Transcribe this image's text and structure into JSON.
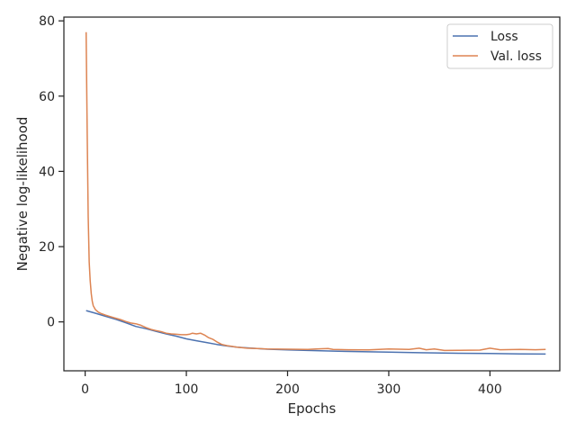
{
  "chart_data": {
    "type": "line",
    "title": "",
    "xlabel": "Epochs",
    "ylabel": "Negative log-likelihood",
    "xlim": [
      -21,
      469
    ],
    "ylim": [
      -13,
      81
    ],
    "xticks": [
      0,
      100,
      200,
      300,
      400
    ],
    "yticks": [
      0,
      20,
      40,
      60,
      80
    ],
    "grid": false,
    "legend_position": "top-right",
    "series": [
      {
        "name": "Loss",
        "color": "#4c72b0",
        "points": [
          [
            1,
            3.0
          ],
          [
            10,
            2.3
          ],
          [
            20,
            1.5
          ],
          [
            30,
            0.7
          ],
          [
            40,
            -0.2
          ],
          [
            50,
            -1.2
          ],
          [
            60,
            -1.8
          ],
          [
            70,
            -2.5
          ],
          [
            80,
            -3.2
          ],
          [
            90,
            -3.8
          ],
          [
            100,
            -4.5
          ],
          [
            110,
            -5.0
          ],
          [
            120,
            -5.5
          ],
          [
            130,
            -6.0
          ],
          [
            140,
            -6.4
          ],
          [
            150,
            -6.7
          ],
          [
            160,
            -6.9
          ],
          [
            170,
            -7.1
          ],
          [
            180,
            -7.25
          ],
          [
            200,
            -7.45
          ],
          [
            220,
            -7.6
          ],
          [
            250,
            -7.8
          ],
          [
            280,
            -7.95
          ],
          [
            300,
            -8.05
          ],
          [
            330,
            -8.2
          ],
          [
            360,
            -8.3
          ],
          [
            400,
            -8.4
          ],
          [
            430,
            -8.5
          ],
          [
            455,
            -8.55
          ]
        ]
      },
      {
        "name": "Val. loss",
        "color": "#dd8452",
        "points": [
          [
            1,
            77.0
          ],
          [
            2,
            50.0
          ],
          [
            3,
            28.0
          ],
          [
            4,
            16.0
          ],
          [
            5,
            11.0
          ],
          [
            6,
            7.5
          ],
          [
            7,
            5.5
          ],
          [
            8,
            4.3
          ],
          [
            10,
            3.3
          ],
          [
            13,
            2.6
          ],
          [
            16,
            2.2
          ],
          [
            20,
            1.8
          ],
          [
            25,
            1.4
          ],
          [
            30,
            1.0
          ],
          [
            35,
            0.6
          ],
          [
            40,
            0.1
          ],
          [
            45,
            -0.3
          ],
          [
            50,
            -0.5
          ],
          [
            55,
            -0.9
          ],
          [
            60,
            -1.5
          ],
          [
            65,
            -2.0
          ],
          [
            70,
            -2.3
          ],
          [
            75,
            -2.6
          ],
          [
            80,
            -3.0
          ],
          [
            85,
            -3.2
          ],
          [
            90,
            -3.3
          ],
          [
            95,
            -3.4
          ],
          [
            100,
            -3.4
          ],
          [
            103,
            -3.3
          ],
          [
            106,
            -3.0
          ],
          [
            110,
            -3.2
          ],
          [
            114,
            -3.0
          ],
          [
            118,
            -3.5
          ],
          [
            122,
            -4.2
          ],
          [
            126,
            -4.6
          ],
          [
            130,
            -5.3
          ],
          [
            135,
            -6.0
          ],
          [
            140,
            -6.3
          ],
          [
            150,
            -6.7
          ],
          [
            160,
            -7.0
          ],
          [
            170,
            -7.1
          ],
          [
            180,
            -7.2
          ],
          [
            200,
            -7.25
          ],
          [
            220,
            -7.3
          ],
          [
            228,
            -7.2
          ],
          [
            240,
            -7.1
          ],
          [
            245,
            -7.3
          ],
          [
            260,
            -7.4
          ],
          [
            280,
            -7.45
          ],
          [
            300,
            -7.2
          ],
          [
            320,
            -7.3
          ],
          [
            330,
            -7.0
          ],
          [
            337,
            -7.4
          ],
          [
            345,
            -7.2
          ],
          [
            355,
            -7.6
          ],
          [
            370,
            -7.55
          ],
          [
            390,
            -7.5
          ],
          [
            400,
            -7.0
          ],
          [
            410,
            -7.4
          ],
          [
            430,
            -7.3
          ],
          [
            445,
            -7.4
          ],
          [
            455,
            -7.3
          ]
        ]
      }
    ]
  }
}
